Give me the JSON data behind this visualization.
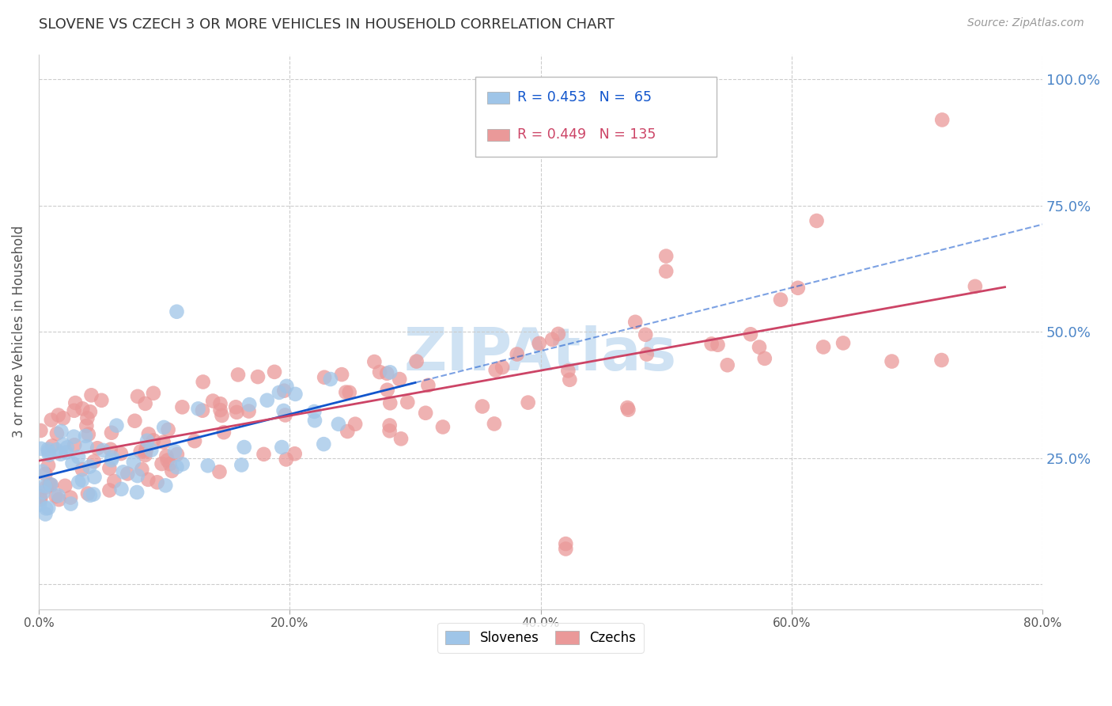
{
  "title": "SLOVENE VS CZECH 3 OR MORE VEHICLES IN HOUSEHOLD CORRELATION CHART",
  "source": "Source: ZipAtlas.com",
  "ylabel": "3 or more Vehicles in Household",
  "xlim": [
    0.0,
    0.8
  ],
  "ylim": [
    -0.05,
    1.05
  ],
  "plot_ylim": [
    -0.05,
    1.05
  ],
  "slovene_color": "#9fc5e8",
  "czech_color": "#ea9999",
  "slovene_line_color": "#1155cc",
  "czech_line_color": "#cc4466",
  "watermark_color": "#cfe2f3",
  "grid_color": "#cccccc",
  "background_color": "#ffffff",
  "title_color": "#333333",
  "axis_label_color": "#555555",
  "tick_color_right": "#4d86c8",
  "tick_color_bottom": "#555555",
  "right_ytick_values": [
    1.0,
    0.75,
    0.5,
    0.25
  ],
  "right_ytick_labels": [
    "100.0%",
    "75.0%",
    "50.0%",
    "25.0%"
  ],
  "xtick_values": [
    0.0,
    0.2,
    0.4,
    0.6,
    0.8
  ],
  "xtick_labels": [
    "0.0%",
    "20.0%",
    "40.0%",
    "60.0%",
    "80.0%"
  ]
}
